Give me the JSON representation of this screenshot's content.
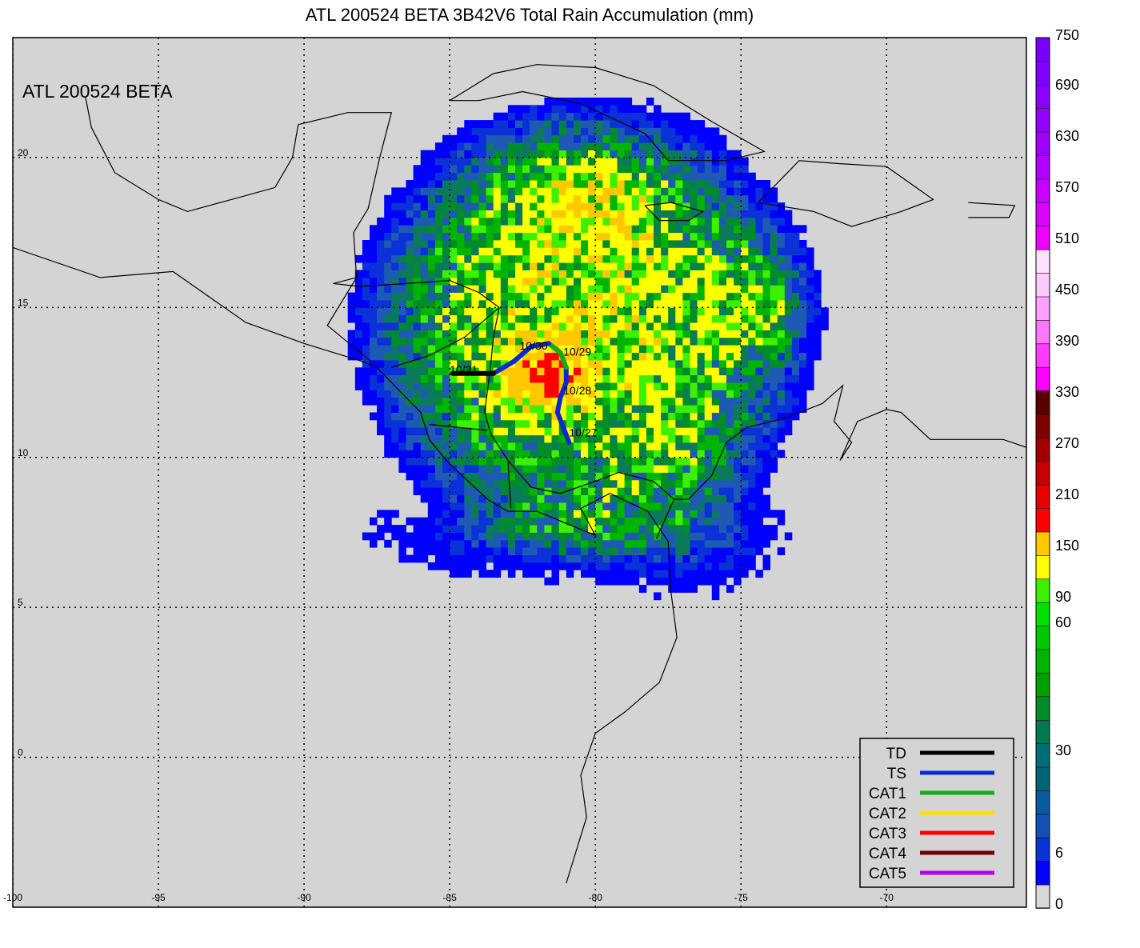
{
  "title": "ATL 200524 BETA 3B42V6 Total Rain Accumulation (mm)",
  "inset_label": "ATL 200524 BETA",
  "map": {
    "lon_range": [
      -100,
      -65.2
    ],
    "lat_range": [
      -5,
      24
    ],
    "lon_ticks": [
      -100,
      -95,
      -90,
      -85,
      -80,
      -75,
      -70
    ],
    "lat_ticks": [
      20,
      15,
      10,
      5,
      0
    ],
    "lon_tick_labels": [
      "-100",
      "-95",
      "-90",
      "-85",
      "-80",
      "-75",
      "-70"
    ],
    "lat_tick_labels": [
      "20",
      "15",
      "10",
      "5",
      "0"
    ],
    "grid": "dotted",
    "background_color": "#d4d4d4"
  },
  "colorbar": {
    "labels": [
      "750",
      "690",
      "630",
      "570",
      "510",
      "450",
      "390",
      "330",
      "270",
      "210",
      "150",
      "90",
      "60",
      "30",
      "6",
      "0"
    ],
    "colors": [
      "#d8d8d8",
      "#0000ff",
      "#0a32d8",
      "#1450b4",
      "#0a5aa0",
      "#006478",
      "#006e78",
      "#007850",
      "#008c28",
      "#00a000",
      "#00b400",
      "#00c800",
      "#00e100",
      "#3cf000",
      "#ffff00",
      "#ffc800",
      "#ff0000",
      "#e60000",
      "#c80000",
      "#a00000",
      "#800000",
      "#5a0000",
      "#ff00ff",
      "#ff3cff",
      "#ff78ff",
      "#ffa0ff",
      "#ffc8ff",
      "#ffe1ff",
      "#f000ff",
      "#dc00ff",
      "#c800ff",
      "#b400ff",
      "#a000ff",
      "#9600ff",
      "#8c00ff",
      "#8200ff",
      "#7800ff"
    ]
  },
  "track": {
    "points": [
      {
        "lon": -80.9,
        "lat": 10.5,
        "cat": "TD"
      },
      {
        "lon": -81.1,
        "lat": 11.0,
        "cat": "TS"
      },
      {
        "lon": -81.3,
        "lat": 11.5,
        "cat": "TS"
      },
      {
        "lon": -81.2,
        "lat": 12.0,
        "cat": "TS"
      },
      {
        "lon": -81.0,
        "lat": 12.5,
        "cat": "TS"
      },
      {
        "lon": -81.0,
        "lat": 13.0,
        "cat": "TS"
      },
      {
        "lon": -81.2,
        "lat": 13.5,
        "cat": "CAT1"
      },
      {
        "lon": -81.6,
        "lat": 13.8,
        "cat": "CAT1"
      },
      {
        "lon": -82.2,
        "lat": 13.7,
        "cat": "TS"
      },
      {
        "lon": -82.8,
        "lat": 13.2,
        "cat": "TS"
      },
      {
        "lon": -83.5,
        "lat": 12.8,
        "cat": "TS"
      },
      {
        "lon": -84.0,
        "lat": 12.8,
        "cat": "TD"
      },
      {
        "lon": -84.9,
        "lat": 12.8,
        "cat": "TD"
      }
    ],
    "date_labels": [
      {
        "text": "10/27",
        "lon": -80.9,
        "lat": 10.7
      },
      {
        "text": "10/28",
        "lon": -81.1,
        "lat": 12.1
      },
      {
        "text": "10/29",
        "lon": -81.1,
        "lat": 13.4
      },
      {
        "text": "10/30",
        "lon": -82.6,
        "lat": 13.6
      },
      {
        "text": "10/31",
        "lon": -85.0,
        "lat": 12.8
      }
    ]
  },
  "legend": {
    "placement": "bottom-right",
    "entries": [
      {
        "label": "TD",
        "color": "#000000"
      },
      {
        "label": "TS",
        "color": "#0a28d2"
      },
      {
        "label": "CAT1",
        "color": "#14aa1e"
      },
      {
        "label": "CAT2",
        "color": "#ffe100"
      },
      {
        "label": "CAT3",
        "color": "#ff0000"
      },
      {
        "label": "CAT4",
        "color": "#6e0000"
      },
      {
        "label": "CAT5",
        "color": "#b400f0"
      }
    ]
  }
}
